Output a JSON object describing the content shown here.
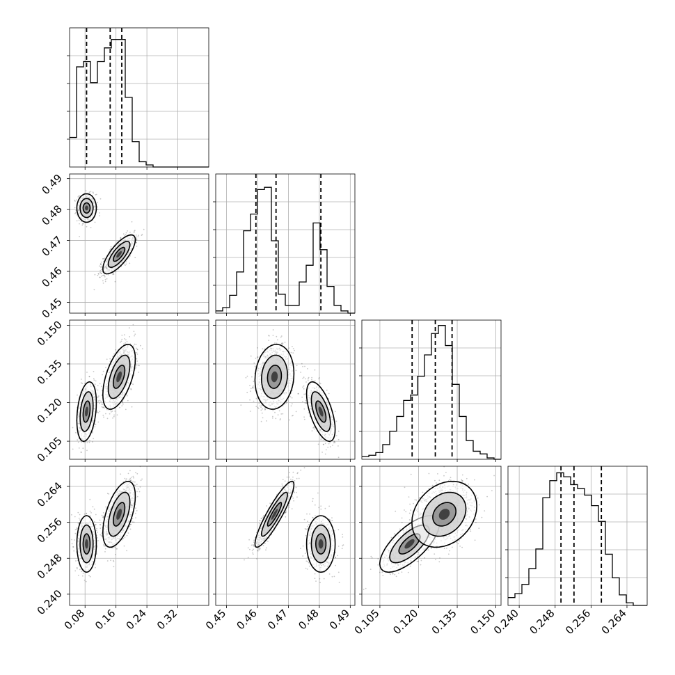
{
  "chart_data": {
    "type": "corner",
    "parameters": [
      {
        "ticks": [
          0.08,
          0.16,
          0.24,
          0.32
        ],
        "tick_labels": [
          "0.08",
          "0.16",
          "0.24",
          "0.32"
        ],
        "range": [
          0.04,
          0.4
        ],
        "quantiles": [
          0.084,
          0.145,
          0.175
        ]
      },
      {
        "ticks": [
          0.45,
          0.46,
          0.47,
          0.48,
          0.49
        ],
        "tick_labels": [
          "0.45",
          "0.46",
          "0.47",
          "0.48",
          "0.49"
        ],
        "range": [
          0.4465,
          0.4915
        ],
        "quantiles": [
          0.4595,
          0.466,
          0.4805
        ]
      },
      {
        "ticks": [
          0.105,
          0.12,
          0.135,
          0.15
        ],
        "tick_labels": [
          "0.105",
          "0.120",
          "0.135",
          "0.150"
        ],
        "range": [
          0.098,
          0.152
        ],
        "quantiles": [
          0.1175,
          0.1265,
          0.133
        ]
      },
      {
        "ticks": [
          0.24,
          0.248,
          0.256,
          0.264
        ],
        "tick_labels": [
          "0.240",
          "0.248",
          "0.256",
          "0.264"
        ],
        "range": [
          0.2375,
          0.2685
        ],
        "quantiles": [
          0.2493,
          0.2522,
          0.2583
        ]
      }
    ],
    "histograms": [
      {
        "edges_start": 0.04,
        "edges_step": 0.018,
        "counts": [
          28,
          95,
          100,
          80,
          100,
          113,
          121,
          121,
          66,
          24,
          5,
          2,
          0,
          0,
          0,
          0,
          0,
          0,
          0,
          0
        ],
        "ymax": 132
      },
      {
        "edges_start": 0.4465,
        "edges_step": 0.00225,
        "counts": [
          2,
          5,
          16,
          37,
          74,
          89,
          111,
          113,
          65,
          17,
          7,
          7,
          28,
          43,
          81,
          57,
          24,
          7,
          2,
          0
        ],
        "ymax": 125
      },
      {
        "edges_start": 0.098,
        "edges_step": 0.0027,
        "counts": [
          2,
          3,
          5,
          11,
          21,
          32,
          44,
          48,
          62,
          78,
          94,
          100,
          85,
          56,
          32,
          14,
          6,
          4,
          1,
          0
        ],
        "ymax": 104
      },
      {
        "edges_start": 0.2375,
        "edges_step": 0.00155,
        "counts": [
          6,
          9,
          16,
          28,
          43,
          82,
          95,
          101,
          98,
          92,
          89,
          84,
          76,
          64,
          39,
          21,
          8,
          2,
          0,
          0
        ],
        "ymax": 106
      }
    ],
    "modes_2d": [
      {
        "weight": 0.38,
        "mean": [
          0.084,
          0.4805,
          0.1165,
          0.2512
        ]
      },
      {
        "weight": 0.62,
        "mean": [
          0.168,
          0.4655,
          0.13,
          0.2578
        ]
      }
    ]
  }
}
